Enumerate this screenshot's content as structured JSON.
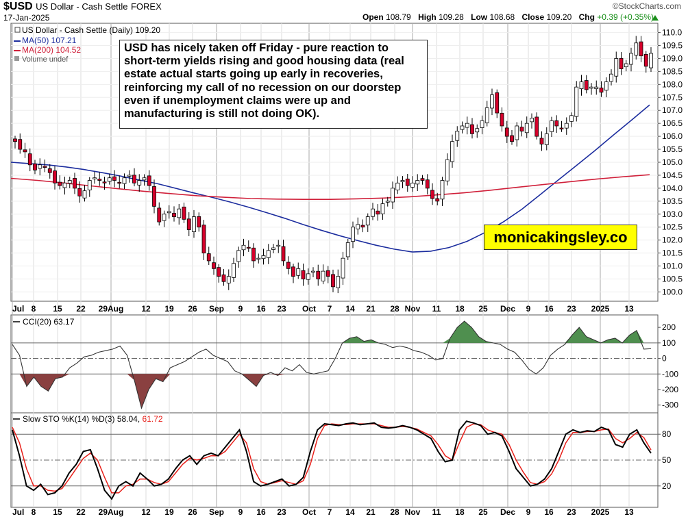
{
  "header": {
    "symbol": "$USD",
    "name": "US Dollar - Cash Settle",
    "exchange": "FOREX",
    "date": "17-Jan-2025",
    "brand": "©StockCharts.com",
    "open_label": "Open",
    "open": "108.79",
    "high_label": "High",
    "high": "109.28",
    "low_label": "Low",
    "low": "108.68",
    "close_label": "Close",
    "close": "109.20",
    "chg_label": "Chg",
    "chg": "+0.39 (+0.35%)",
    "chg_icon": "up-triangle-icon"
  },
  "legend": {
    "main": "US Dollar - Cash Settle (Daily) 109.20",
    "ma50": "MA(50) 107.21",
    "ma200": "MA(200) 104.52",
    "volume": "Volume undef"
  },
  "annotation": "USD has nicely taken off Friday - pure reaction to short-term yields rising and good housing data (real estate actual starts going up early in recoveries, reinforcing my call of no recession on our doorstep even if unemployment claims were up and manufacturing is still not doing OK).",
  "website": "monicakingsley.co",
  "colors": {
    "up": "#ffffff",
    "down": "#d4002a",
    "ma50": "#1c2d9e",
    "ma200": "#d0203a",
    "cci_pos": "#4f8f4f",
    "cci_neg": "#8a4040",
    "stoch_d": "#e8201a"
  },
  "x_axis_labels": [
    "Jul",
    "8",
    "15",
    "22",
    "29Aug",
    "12",
    "19",
    "26",
    "Sep",
    "9",
    "16",
    "23",
    "Oct",
    "7",
    "14",
    "21",
    "28",
    "Nov",
    "11",
    "18",
    "25",
    "Dec",
    "9",
    "16",
    "23",
    "2025",
    "13"
  ],
  "cci_label": "CCI(20) 63.17",
  "cci_ticks": [
    "200",
    "100",
    "0",
    "-100",
    "-200",
    "-300"
  ],
  "sto_label": "Slow STO %K(14) %D(3) 58.04,",
  "sto_d_value": "61.72",
  "sto_ticks": [
    "80",
    "50",
    "20"
  ],
  "chart_data": [
    {
      "type": "candlestick",
      "title": "US Dollar - Cash Settle (Daily) 109.20",
      "ylim": [
        99.8,
        110.2
      ],
      "y_ticks": [
        100.0,
        100.5,
        101.0,
        101.5,
        102.0,
        102.5,
        103.0,
        103.5,
        104.0,
        104.5,
        105.0,
        105.5,
        106.0,
        106.5,
        107.0,
        107.5,
        108.0,
        108.5,
        109.0,
        109.5,
        110.0
      ],
      "close_series": [
        105.8,
        105.5,
        105.4,
        104.9,
        104.7,
        104.9,
        104.8,
        104.6,
        104.2,
        104.1,
        104.2,
        104.3,
        104.0,
        103.7,
        103.9,
        104.3,
        104.4,
        104.3,
        104.2,
        104.4,
        104.3,
        104.2,
        104.4,
        104.5,
        104.2,
        104.3,
        104.4,
        104.1,
        103.3,
        102.7,
        103.0,
        103.1,
        102.9,
        103.2,
        102.8,
        102.4,
        102.9,
        102.5,
        101.5,
        101.2,
        100.9,
        100.6,
        100.4,
        100.6,
        101.1,
        101.6,
        101.8,
        101.7,
        101.2,
        101.3,
        101.4,
        101.6,
        101.7,
        101.8,
        101.2,
        100.9,
        100.6,
        100.9,
        100.5,
        100.7,
        100.8,
        100.5,
        100.8,
        100.6,
        100.2,
        100.6,
        101.3,
        101.9,
        102.5,
        102.6,
        102.5,
        102.9,
        103.2,
        103.0,
        103.4,
        103.5,
        104.0,
        104.2,
        104.3,
        104.1,
        104.2,
        104.3,
        104.3,
        104.0,
        103.6,
        103.5,
        104.3,
        105.1,
        105.8,
        106.2,
        106.4,
        106.5,
        106.1,
        106.3,
        106.6,
        107.1,
        107.6,
        106.9,
        106.4,
        106.0,
        105.8,
        106.4,
        106.2,
        106.5,
        106.7,
        106.0,
        105.7,
        106.1,
        106.6,
        106.4,
        106.3,
        106.5,
        106.8,
        107.9,
        108.1,
        107.8,
        107.9,
        107.9,
        107.7,
        108.1,
        108.4,
        109.0,
        108.6,
        108.8,
        109.2,
        109.6,
        109.1,
        108.7,
        109.2
      ],
      "ma50": [
        105.0,
        104.95,
        104.9,
        104.82,
        104.72,
        104.6,
        104.47,
        104.32,
        104.18,
        104.0,
        103.82,
        103.65,
        103.47,
        103.27,
        103.06,
        102.84,
        102.6,
        102.38,
        102.17,
        101.98,
        101.8,
        101.65,
        101.54,
        101.57,
        101.71,
        101.95,
        102.3,
        102.71,
        103.19,
        103.75,
        104.32,
        104.88,
        105.45,
        106.04,
        106.62,
        107.21
      ],
      "ma200": [
        104.38,
        104.3,
        104.2,
        104.09,
        103.98,
        103.88,
        103.79,
        103.71,
        103.65,
        103.6,
        103.58,
        103.57,
        103.57,
        103.59,
        103.62,
        103.67,
        103.74,
        103.82,
        103.92,
        104.03,
        104.14,
        104.25,
        104.35,
        104.44,
        104.52
      ]
    },
    {
      "type": "line",
      "title": "CCI(20) 63.17",
      "ylim": [
        -350,
        280
      ],
      "y_ticks": [
        200,
        100,
        0,
        -100,
        -200,
        -300
      ],
      "values": [
        90,
        20,
        -180,
        -120,
        -180,
        -210,
        -130,
        -120,
        -60,
        -30,
        10,
        20,
        40,
        50,
        60,
        80,
        20,
        -140,
        -320,
        -200,
        -130,
        -150,
        -60,
        -40,
        -20,
        10,
        40,
        60,
        20,
        0,
        -20,
        -80,
        -100,
        -140,
        -180,
        -110,
        -90,
        -110,
        -60,
        -80,
        -40,
        -90,
        -100,
        -90,
        -80,
        0,
        100,
        130,
        140,
        110,
        120,
        100,
        90,
        70,
        80,
        70,
        50,
        40,
        20,
        -10,
        0,
        130,
        200,
        240,
        200,
        140,
        110,
        100,
        90,
        60,
        40,
        -10,
        -70,
        -100,
        -60,
        20,
        60,
        90,
        150,
        200,
        140,
        120,
        100,
        120,
        130,
        100,
        150,
        180,
        60,
        63
      ]
    },
    {
      "type": "line",
      "title": "Slow STO %K(14) %D(3)",
      "ylim": [
        0,
        100
      ],
      "y_ticks": [
        80,
        50,
        20
      ],
      "series": [
        {
          "name": "%K",
          "values": [
            85,
            55,
            20,
            15,
            22,
            10,
            12,
            20,
            35,
            45,
            60,
            62,
            40,
            15,
            5,
            20,
            25,
            20,
            35,
            28,
            20,
            22,
            28,
            40,
            50,
            55,
            45,
            55,
            58,
            55,
            65,
            75,
            85,
            60,
            25,
            20,
            22,
            25,
            28,
            20,
            22,
            30,
            60,
            85,
            92,
            91,
            90,
            92,
            93,
            91,
            92,
            93,
            88,
            87,
            88,
            90,
            88,
            85,
            80,
            75,
            60,
            48,
            50,
            85,
            95,
            93,
            90,
            80,
            82,
            78,
            60,
            40,
            30,
            20,
            22,
            28,
            40,
            60,
            80,
            85,
            82,
            84,
            83,
            88,
            85,
            68,
            65,
            80,
            85,
            70,
            58
          ]
        },
        {
          "name": "%D",
          "values": [
            88,
            70,
            40,
            20,
            20,
            15,
            14,
            17,
            28,
            40,
            52,
            58,
            50,
            30,
            12,
            12,
            20,
            22,
            28,
            28,
            24,
            22,
            25,
            35,
            45,
            52,
            50,
            52,
            55,
            55,
            60,
            70,
            80,
            70,
            40,
            25,
            22,
            24,
            26,
            24,
            22,
            26,
            45,
            75,
            90,
            92,
            91,
            91,
            92,
            92,
            92,
            92,
            90,
            88,
            88,
            89,
            88,
            86,
            82,
            78,
            68,
            55,
            50,
            70,
            88,
            92,
            91,
            85,
            82,
            80,
            68,
            50,
            36,
            24,
            22,
            25,
            34,
            50,
            70,
            82,
            82,
            83,
            83,
            85,
            86,
            75,
            70,
            75,
            82,
            76,
            61.72
          ]
        }
      ]
    }
  ]
}
